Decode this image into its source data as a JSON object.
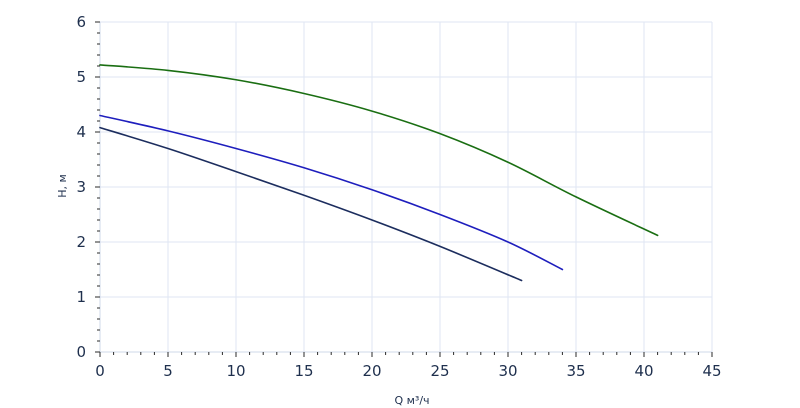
{
  "chart_data": {
    "type": "line",
    "xlabel": "Q м³/ч",
    "ylabel": "H, м",
    "xlim": [
      0,
      45
    ],
    "ylim": [
      0,
      6
    ],
    "x_ticks": [
      "0",
      "5",
      "10",
      "15",
      "20",
      "25",
      "30",
      "35",
      "40",
      "45"
    ],
    "y_ticks": [
      "0",
      "1",
      "2",
      "3",
      "4",
      "5",
      "6"
    ],
    "grid": true,
    "series": [
      {
        "color": "#1a6e12",
        "points": [
          [
            0,
            5.22
          ],
          [
            5,
            5.12
          ],
          [
            10,
            4.95
          ],
          [
            15,
            4.7
          ],
          [
            20,
            4.38
          ],
          [
            25,
            3.97
          ],
          [
            30,
            3.45
          ],
          [
            35,
            2.82
          ],
          [
            41,
            2.12
          ]
        ]
      },
      {
        "color": "#1e1ebd",
        "points": [
          [
            0,
            4.3
          ],
          [
            5,
            4.02
          ],
          [
            10,
            3.7
          ],
          [
            15,
            3.35
          ],
          [
            20,
            2.95
          ],
          [
            25,
            2.5
          ],
          [
            30,
            2.0
          ],
          [
            34,
            1.5
          ]
        ]
      },
      {
        "color": "#1c2d5e",
        "points": [
          [
            0,
            4.08
          ],
          [
            5,
            3.7
          ],
          [
            10,
            3.28
          ],
          [
            15,
            2.85
          ],
          [
            20,
            2.4
          ],
          [
            25,
            1.92
          ],
          [
            31,
            1.3
          ]
        ]
      }
    ]
  }
}
